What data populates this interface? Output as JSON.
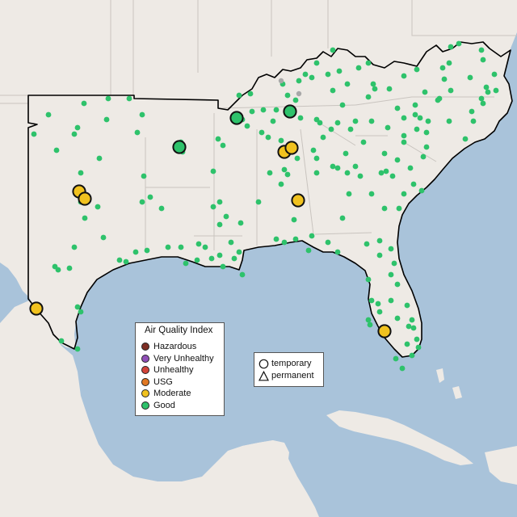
{
  "map": {
    "region": "Southeastern United States",
    "basemap_colors": {
      "land": "#eeeae5",
      "water": "#a9c3da",
      "state_border": "#c9c4bf",
      "region_outline": "#000000"
    }
  },
  "aqi_legend": {
    "title": "Air Quality Index",
    "items": [
      {
        "label": "Hazardous",
        "color": "#7e2e24"
      },
      {
        "label": "Very Unhealthy",
        "color": "#8f4fb7"
      },
      {
        "label": "Unhealthy",
        "color": "#d2443a"
      },
      {
        "label": "USG",
        "color": "#e07824"
      },
      {
        "label": "Moderate",
        "color": "#f1c21f"
      },
      {
        "label": "Good",
        "color": "#2ec26b"
      }
    ]
  },
  "shape_legend": {
    "items": [
      {
        "label": "temporary",
        "shape": "circle"
      },
      {
        "label": "permanent",
        "shape": "triangle"
      }
    ]
  },
  "monitors": {
    "large": [
      {
        "category": "Good"
      },
      {
        "category": "Good"
      },
      {
        "category": "Good"
      },
      {
        "category": "Moderate"
      },
      {
        "category": "Moderate"
      },
      {
        "category": "Moderate"
      },
      {
        "category": "Moderate"
      },
      {
        "category": "Moderate"
      },
      {
        "category": "Moderate"
      },
      {
        "category": "Moderate"
      }
    ],
    "small_category": "Good"
  }
}
